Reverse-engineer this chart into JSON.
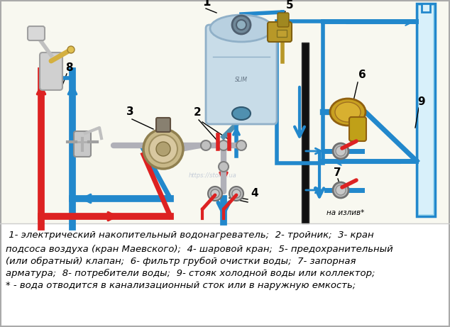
{
  "background_color": "#ffffff",
  "diagram_bg": "#f5f5f0",
  "pipe_blue": "#5bc8e8",
  "pipe_blue_dark": "#2288cc",
  "pipe_red": "#dd2222",
  "pipe_outline": "#000000",
  "gold": "#c8a028",
  "silver": "#b0b0b8",
  "dark": "#222222",
  "legend_lines": [
    " 1- электрический накопительный водонагреватель;  2- тройник;  3- кран",
    "подсоса воздуха (кран Маевского);  4- шаровой кран;  5- предохранительный",
    "(или обратный) клапан;  6- фильтр грубой очистки воды;  7- запорная",
    "арматура;  8- потребители воды;  9- стояк холодной воды или коллектор;",
    "* - вода отводится в канализационный сток или в наружную емкость;"
  ],
  "figsize": [
    6.34,
    4.61
  ],
  "dpi": 100
}
